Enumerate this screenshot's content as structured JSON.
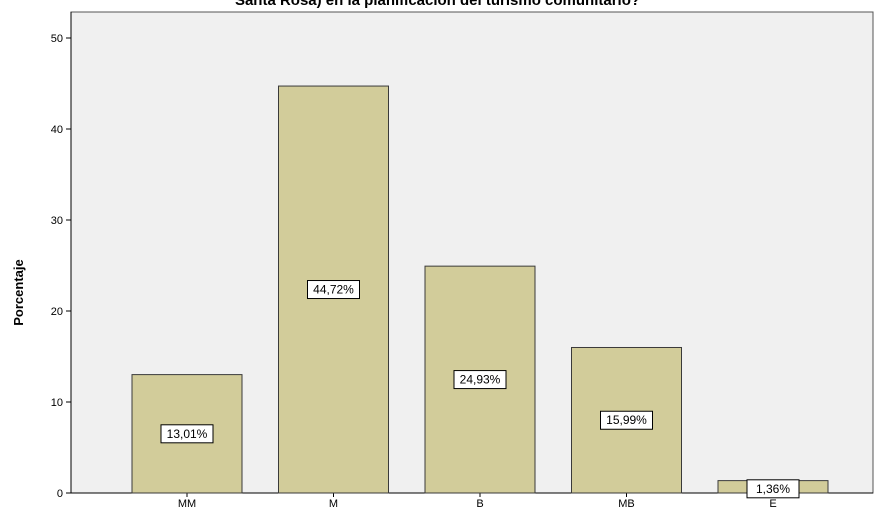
{
  "chart_data": {
    "type": "bar",
    "title": "Santa Rosa) en la planificación del turismo comunitario?",
    "xlabel": "",
    "ylabel": "Porcentaje",
    "ylim": [
      0,
      50
    ],
    "yticks": [
      0,
      10,
      20,
      30,
      40,
      50
    ],
    "categories": [
      "MM",
      "M",
      "B",
      "MB",
      "E"
    ],
    "values": [
      13.01,
      44.72,
      24.93,
      15.99,
      1.36
    ],
    "data_labels": [
      "13,01%",
      "44,72%",
      "24,93%",
      "15,99%",
      "1,36%"
    ],
    "grid": false,
    "colors": {
      "bar_fill": "#d2cc9a",
      "bar_stroke": "#3a3a3a",
      "plot_background": "#f0f0f0",
      "frame": "#555555"
    }
  }
}
